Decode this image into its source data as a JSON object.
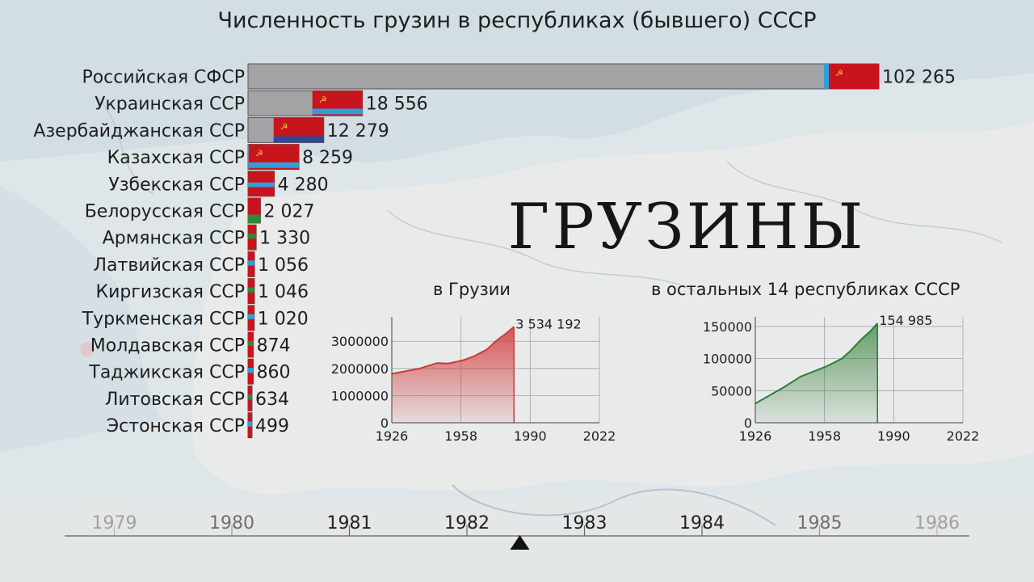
{
  "title": "Численность грузин в республиках (бывшего) СССР",
  "big_word": "ГРУЗИНЫ",
  "chart_data": [
    {
      "type": "bar",
      "orientation": "horizontal",
      "title": "Численность грузин в республиках (бывшего) СССР",
      "categories": [
        "Российская СФСР",
        "Украинская ССР",
        "Азербайджанская ССР",
        "Казахская ССР",
        "Узбекская ССР",
        "Белорусская ССР",
        "Армянская ССР",
        "Латвийская ССР",
        "Киргизская ССР",
        "Туркменская ССР",
        "Молдавская ССР",
        "Таджикская ССР",
        "Литовская ССР",
        "Эстонская ССР"
      ],
      "values": [
        102265,
        18556,
        12279,
        8259,
        4280,
        2027,
        1330,
        1056,
        1046,
        1020,
        874,
        860,
        634,
        499
      ],
      "value_labels": [
        "102 265",
        "18 556",
        "12 279",
        "8 259",
        "4 280",
        "2 027",
        "1 330",
        "1 056",
        "1 046",
        "1 020",
        "874",
        "860",
        "634",
        "499"
      ],
      "colors": {
        "bar": "#a3a3a6",
        "flag_red": "#c8151d",
        "flag_blue": "#2f9fda",
        "flag_green": "#2c8a3c"
      }
    },
    {
      "type": "area",
      "title": "в Грузии",
      "x": [
        1926,
        1939,
        1947,
        1952,
        1959,
        1964,
        1970,
        1974,
        1979,
        1982.5
      ],
      "y": [
        1800000,
        2000000,
        2200000,
        2180000,
        2300000,
        2450000,
        2700000,
        3000000,
        3300000,
        3534192
      ],
      "end_label": "3 534 192",
      "xticks": [
        1926,
        1958,
        1990,
        2022
      ],
      "yticks": [
        0,
        1000000,
        2000000,
        3000000
      ],
      "xlim": [
        1926,
        2022
      ],
      "ylim": [
        0,
        3900000
      ],
      "color": "#cc3a3a"
    },
    {
      "type": "area",
      "title": "в остальных 14 республиках СССР",
      "x": [
        1926,
        1939,
        1947,
        1959,
        1966,
        1970,
        1975,
        1979,
        1982.5
      ],
      "y": [
        30000,
        55000,
        72000,
        88000,
        100000,
        112000,
        130000,
        142000,
        154985
      ],
      "end_label": "154 985",
      "xticks": [
        1926,
        1958,
        1990,
        2022
      ],
      "yticks": [
        0,
        50000,
        100000,
        150000
      ],
      "xlim": [
        1926,
        2022
      ],
      "ylim": [
        0,
        165000
      ],
      "color": "#2e7d32"
    }
  ],
  "timeline": {
    "years": [
      "1979",
      "1980",
      "1981",
      "1982",
      "1983",
      "1984",
      "1985",
      "1986"
    ],
    "current": 1982.45
  }
}
